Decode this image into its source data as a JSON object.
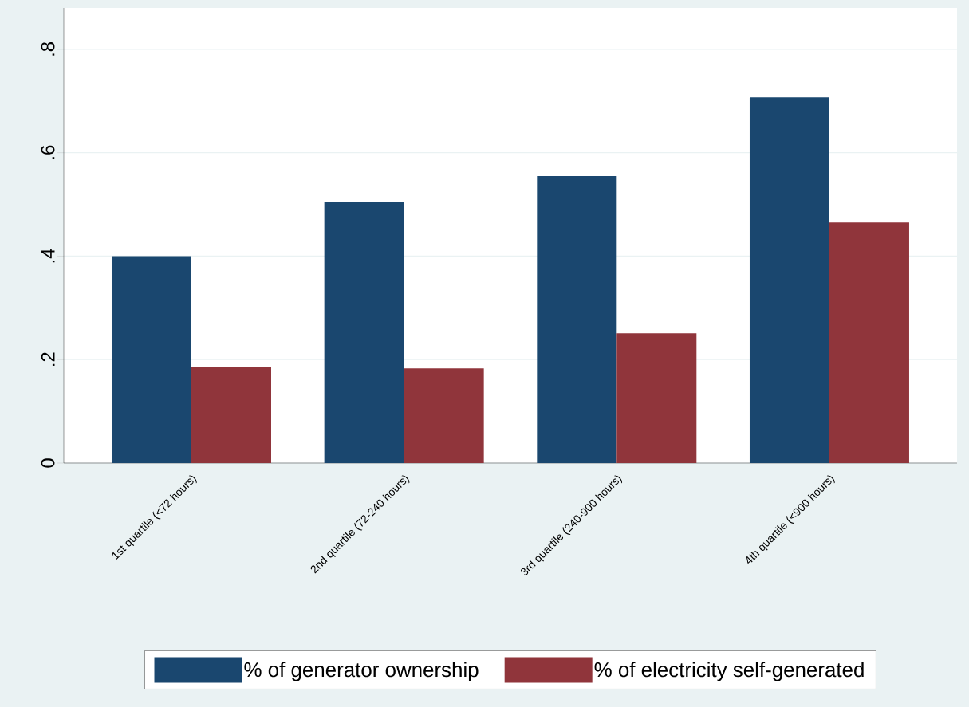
{
  "chart_data": {
    "type": "bar",
    "categories": [
      "1st quartile (<72 hours)",
      "2nd quartile (72-240 hours)",
      "3rd quartile (240-900 hours)",
      "4th quartile (<900 hours)"
    ],
    "series": [
      {
        "name": "% of generator ownership",
        "color": "#1a476f",
        "values": [
          0.4,
          0.505,
          0.555,
          0.707
        ]
      },
      {
        "name": "% of electricity self-generated",
        "color": "#90353b",
        "values": [
          0.186,
          0.183,
          0.251,
          0.465
        ]
      }
    ],
    "ylim": [
      0,
      0.88
    ],
    "yticks": [
      0,
      {
        "value": 0.2,
        "label": ".2"
      },
      {
        "value": 0.4,
        "label": ".4"
      },
      {
        "value": 0.6,
        "label": ".6"
      },
      {
        "value": 0.8,
        "label": ".8"
      }
    ],
    "grid": "y",
    "legend": "bottom"
  }
}
